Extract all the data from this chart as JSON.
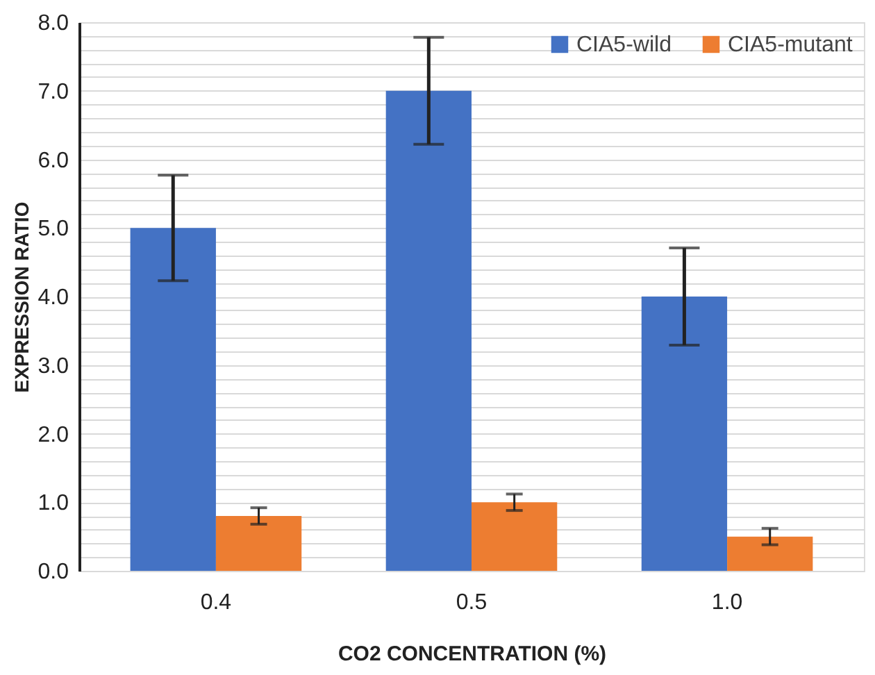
{
  "chart_data": {
    "type": "bar",
    "xlabel": "CO2 CONCENTRATION (%)",
    "ylabel": "EXPRESSION RATIO",
    "categories": [
      "0.4",
      "0.5",
      "1.0"
    ],
    "series": [
      {
        "name": "CIA5-wild",
        "color": "#4472c4",
        "values": [
          5.0,
          7.0,
          4.0
        ],
        "errors": [
          0.77,
          0.78,
          0.71
        ]
      },
      {
        "name": "CIA5-mutant",
        "color": "#ed7d31",
        "values": [
          0.8,
          1.0,
          0.5
        ],
        "errors": [
          0.12,
          0.12,
          0.12
        ]
      }
    ],
    "ylim": [
      0,
      8
    ],
    "yticks": [
      {
        "value": 0,
        "label": "0.0"
      },
      {
        "value": 0.2,
        "label": null
      },
      {
        "value": 0.4,
        "label": null
      },
      {
        "value": 0.6,
        "label": null
      },
      {
        "value": 0.8,
        "label": null
      },
      {
        "value": 1,
        "label": "1.0"
      },
      {
        "value": 1.2,
        "label": null
      },
      {
        "value": 1.4,
        "label": null
      },
      {
        "value": 1.6,
        "label": null
      },
      {
        "value": 1.8,
        "label": null
      },
      {
        "value": 2,
        "label": "2.0"
      },
      {
        "value": 2.2,
        "label": null
      },
      {
        "value": 2.4,
        "label": null
      },
      {
        "value": 2.6,
        "label": null
      },
      {
        "value": 2.8,
        "label": null
      },
      {
        "value": 3,
        "label": "3.0"
      },
      {
        "value": 3.2,
        "label": null
      },
      {
        "value": 3.4,
        "label": null
      },
      {
        "value": 3.6,
        "label": null
      },
      {
        "value": 3.8,
        "label": null
      },
      {
        "value": 4,
        "label": "4.0"
      },
      {
        "value": 4.2,
        "label": null
      },
      {
        "value": 4.4,
        "label": null
      },
      {
        "value": 4.6,
        "label": null
      },
      {
        "value": 4.8,
        "label": null
      },
      {
        "value": 5,
        "label": "5.0"
      },
      {
        "value": 5.2,
        "label": null
      },
      {
        "value": 5.4,
        "label": null
      },
      {
        "value": 5.6,
        "label": null
      },
      {
        "value": 5.8,
        "label": null
      },
      {
        "value": 6,
        "label": "6.0"
      },
      {
        "value": 6.2,
        "label": null
      },
      {
        "value": 6.4,
        "label": null
      },
      {
        "value": 6.6,
        "label": null
      },
      {
        "value": 6.8,
        "label": null
      },
      {
        "value": 7,
        "label": "7.0"
      },
      {
        "value": 7.2,
        "label": null
      },
      {
        "value": 7.4,
        "label": null
      },
      {
        "value": 7.6,
        "label": null
      },
      {
        "value": 7.8,
        "label": null
      },
      {
        "value": 8,
        "label": "8.0"
      }
    ],
    "grid": "y",
    "legend": "top right"
  }
}
